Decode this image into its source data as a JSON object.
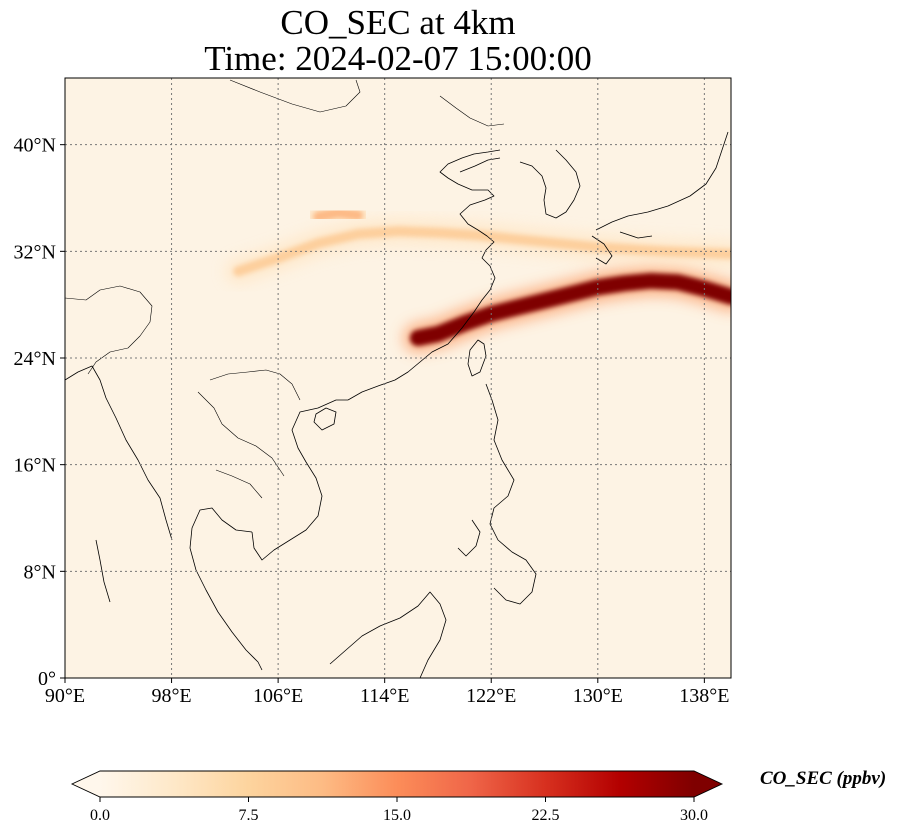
{
  "title": {
    "line1": "CO_SEC at 4km",
    "line2": "Time: 2024-02-07 15:00:00"
  },
  "map": {
    "lon_range": [
      90,
      140
    ],
    "lat_range": [
      0,
      45
    ],
    "lon_ticks": [
      {
        "value": 90,
        "label": "90°E"
      },
      {
        "value": 98,
        "label": "98°E"
      },
      {
        "value": 106,
        "label": "106°E"
      },
      {
        "value": 114,
        "label": "114°E"
      },
      {
        "value": 122,
        "label": "122°E"
      },
      {
        "value": 130,
        "label": "130°E"
      },
      {
        "value": 138,
        "label": "138°E"
      }
    ],
    "lat_ticks": [
      {
        "value": 0,
        "label": "0°"
      },
      {
        "value": 8,
        "label": "8°N"
      },
      {
        "value": 16,
        "label": "16°N"
      },
      {
        "value": 24,
        "label": "24°N"
      },
      {
        "value": 32,
        "label": "32°N"
      },
      {
        "value": 40,
        "label": "40°N"
      }
    ],
    "gridlines": true,
    "field_background_color": "#fdf3e4",
    "plumes": [
      {
        "lon": [
          116.5,
          118,
          120,
          122,
          124,
          126,
          128,
          130,
          132,
          134,
          136,
          138,
          140
        ],
        "lat": [
          25.5,
          25.8,
          26.6,
          27.3,
          27.8,
          28.3,
          28.8,
          29.3,
          29.6,
          29.8,
          29.7,
          29.2,
          28.6
        ],
        "value": 30
      },
      {
        "lon": [
          103,
          106,
          109,
          112,
          115,
          118,
          121,
          125,
          130,
          135,
          140
        ],
        "lat": [
          30.5,
          31.5,
          32.6,
          33.3,
          33.5,
          33.4,
          33.2,
          32.8,
          32.3,
          32.0,
          31.8
        ],
        "value": 9
      },
      {
        "lon": [
          109,
          110.5,
          112
        ],
        "lat": [
          34.6,
          34.9,
          34.7
        ],
        "value": 12
      }
    ]
  },
  "colorbar": {
    "label": "CO_SEC (ppbv)",
    "min": 0,
    "max": 30,
    "extend": "both",
    "tick_labels": [
      "0.0",
      "7.5",
      "15.0",
      "22.5",
      "30.0"
    ],
    "colormap": [
      "#fff7ec",
      "#fee8c8",
      "#fdd49e",
      "#fdbb84",
      "#fc8d59",
      "#ef6548",
      "#d7301f",
      "#b30000",
      "#7f0000"
    ]
  }
}
